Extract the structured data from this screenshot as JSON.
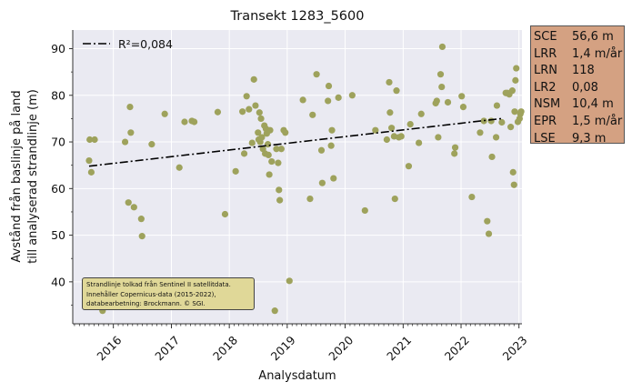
{
  "chart_data": {
    "type": "scatter",
    "title": "Transekt 1283_5600",
    "xlabel": "Analysdatum",
    "ylabel_lines": [
      "Avstånd från baslinje på land",
      "till analyserad strandlinje (m)"
    ],
    "xlim": [
      "2015-04-20",
      "2023-01-20"
    ],
    "ylim": [
      31,
      94
    ],
    "x_ticks": [
      "2016",
      "2017",
      "2018",
      "2019",
      "2020",
      "2021",
      "2022",
      "2023"
    ],
    "y_ticks": [
      40,
      50,
      60,
      70,
      80,
      90
    ],
    "grid": true,
    "legend": {
      "position": "top-left",
      "label": "R²=0,084"
    },
    "point_color": "#9ea25c",
    "trend": {
      "x": [
        "2015-08-01",
        "2022-09-10"
      ],
      "y": [
        64.8,
        75.0
      ]
    },
    "points": [
      {
        "x": "2015-08-01",
        "y": 66.0
      },
      {
        "x": "2015-08-05",
        "y": 70.5
      },
      {
        "x": "2015-08-15",
        "y": 63.5
      },
      {
        "x": "2015-09-05",
        "y": 70.5
      },
      {
        "x": "2015-10-25",
        "y": 33.8
      },
      {
        "x": "2016-03-15",
        "y": 70.0
      },
      {
        "x": "2016-04-05",
        "y": 57.0
      },
      {
        "x": "2016-04-15",
        "y": 77.5
      },
      {
        "x": "2016-04-20",
        "y": 72.0
      },
      {
        "x": "2016-05-10",
        "y": 56.0
      },
      {
        "x": "2016-06-25",
        "y": 53.5
      },
      {
        "x": "2016-06-30",
        "y": 49.8
      },
      {
        "x": "2016-08-30",
        "y": 69.5
      },
      {
        "x": "2016-11-20",
        "y": 76.0
      },
      {
        "x": "2017-02-20",
        "y": 64.5
      },
      {
        "x": "2017-03-25",
        "y": 74.3
      },
      {
        "x": "2017-05-10",
        "y": 74.5
      },
      {
        "x": "2017-05-25",
        "y": 74.3
      },
      {
        "x": "2017-10-20",
        "y": 76.4
      },
      {
        "x": "2017-12-05",
        "y": 54.5
      },
      {
        "x": "2018-02-10",
        "y": 63.7
      },
      {
        "x": "2018-03-25",
        "y": 76.5
      },
      {
        "x": "2018-04-05",
        "y": 67.5
      },
      {
        "x": "2018-04-20",
        "y": 79.8
      },
      {
        "x": "2018-05-05",
        "y": 77.0
      },
      {
        "x": "2018-05-25",
        "y": 69.8
      },
      {
        "x": "2018-06-05",
        "y": 83.4
      },
      {
        "x": "2018-06-15",
        "y": 77.8
      },
      {
        "x": "2018-07-01",
        "y": 72.0
      },
      {
        "x": "2018-07-05",
        "y": 70.5
      },
      {
        "x": "2018-07-10",
        "y": 76.3
      },
      {
        "x": "2018-07-15",
        "y": 70.0
      },
      {
        "x": "2018-07-20",
        "y": 75.0
      },
      {
        "x": "2018-07-25",
        "y": 71.0
      },
      {
        "x": "2018-08-01",
        "y": 68.5
      },
      {
        "x": "2018-08-10",
        "y": 73.5
      },
      {
        "x": "2018-08-15",
        "y": 67.5
      },
      {
        "x": "2018-08-20",
        "y": 72.8
      },
      {
        "x": "2018-08-25",
        "y": 71.8
      },
      {
        "x": "2018-09-01",
        "y": 69.5
      },
      {
        "x": "2018-09-05",
        "y": 67.2
      },
      {
        "x": "2018-09-10",
        "y": 63.0
      },
      {
        "x": "2018-09-15",
        "y": 72.5
      },
      {
        "x": "2018-09-25",
        "y": 65.8
      },
      {
        "x": "2018-10-15",
        "y": 33.8
      },
      {
        "x": "2018-10-25",
        "y": 68.5
      },
      {
        "x": "2018-11-05",
        "y": 65.5
      },
      {
        "x": "2018-11-10",
        "y": 59.7
      },
      {
        "x": "2018-11-15",
        "y": 57.5
      },
      {
        "x": "2018-11-25",
        "y": 68.5
      },
      {
        "x": "2018-12-10",
        "y": 72.5
      },
      {
        "x": "2018-12-20",
        "y": 72.0
      },
      {
        "x": "2019-01-15",
        "y": 40.2
      },
      {
        "x": "2019-04-10",
        "y": 79.0
      },
      {
        "x": "2019-05-25",
        "y": 57.8
      },
      {
        "x": "2019-06-10",
        "y": 75.8
      },
      {
        "x": "2019-07-05",
        "y": 84.5
      },
      {
        "x": "2019-08-05",
        "y": 68.2
      },
      {
        "x": "2019-08-10",
        "y": 61.2
      },
      {
        "x": "2019-09-15",
        "y": 78.8
      },
      {
        "x": "2019-09-20",
        "y": 82.0
      },
      {
        "x": "2019-10-05",
        "y": 69.2
      },
      {
        "x": "2019-10-10",
        "y": 72.5
      },
      {
        "x": "2019-10-20",
        "y": 62.2
      },
      {
        "x": "2019-11-20",
        "y": 79.5
      },
      {
        "x": "2020-02-15",
        "y": 80.0
      },
      {
        "x": "2020-05-05",
        "y": 55.3
      },
      {
        "x": "2020-07-10",
        "y": 72.5
      },
      {
        "x": "2020-09-20",
        "y": 70.5
      },
      {
        "x": "2020-10-05",
        "y": 82.8
      },
      {
        "x": "2020-10-10",
        "y": 76.3
      },
      {
        "x": "2020-10-20",
        "y": 73.0
      },
      {
        "x": "2020-11-05",
        "y": 71.2
      },
      {
        "x": "2020-11-10",
        "y": 57.8
      },
      {
        "x": "2020-11-20",
        "y": 81.0
      },
      {
        "x": "2020-12-05",
        "y": 71.0
      },
      {
        "x": "2020-12-20",
        "y": 71.2
      },
      {
        "x": "2021-02-05",
        "y": 64.8
      },
      {
        "x": "2021-02-15",
        "y": 73.8
      },
      {
        "x": "2021-04-10",
        "y": 69.8
      },
      {
        "x": "2021-04-25",
        "y": 76.0
      },
      {
        "x": "2021-07-25",
        "y": 78.3
      },
      {
        "x": "2021-08-01",
        "y": 78.8
      },
      {
        "x": "2021-08-10",
        "y": 71.0
      },
      {
        "x": "2021-08-25",
        "y": 84.5
      },
      {
        "x": "2021-09-01",
        "y": 81.8
      },
      {
        "x": "2021-09-05",
        "y": 90.4
      },
      {
        "x": "2021-10-10",
        "y": 78.5
      },
      {
        "x": "2021-11-20",
        "y": 67.5
      },
      {
        "x": "2021-11-25",
        "y": 68.8
      },
      {
        "x": "2022-01-05",
        "y": 79.8
      },
      {
        "x": "2022-01-15",
        "y": 77.5
      },
      {
        "x": "2022-03-10",
        "y": 58.2
      },
      {
        "x": "2022-05-01",
        "y": 72.0
      },
      {
        "x": "2022-05-25",
        "y": 74.5
      },
      {
        "x": "2022-06-15",
        "y": 53.0
      },
      {
        "x": "2022-06-25",
        "y": 50.3
      },
      {
        "x": "2022-07-10",
        "y": 74.5
      },
      {
        "x": "2022-07-15",
        "y": 66.8
      },
      {
        "x": "2022-08-10",
        "y": 71.0
      },
      {
        "x": "2022-08-15",
        "y": 77.8
      },
      {
        "x": "2022-09-15",
        "y": 74.2
      },
      {
        "x": "2022-10-10",
        "y": 80.5
      },
      {
        "x": "2022-10-20",
        "y": 80.5
      },
      {
        "x": "2022-11-01",
        "y": 80.2
      },
      {
        "x": "2022-11-10",
        "y": 73.2
      },
      {
        "x": "2022-11-20",
        "y": 81.0
      },
      {
        "x": "2022-11-25",
        "y": 63.5
      },
      {
        "x": "2022-12-01",
        "y": 60.8
      },
      {
        "x": "2022-12-05",
        "y": 76.5
      },
      {
        "x": "2022-12-10",
        "y": 83.2
      },
      {
        "x": "2022-12-15",
        "y": 85.8
      },
      {
        "x": "2022-12-25",
        "y": 74.3
      },
      {
        "x": "2023-01-05",
        "y": 75.0
      },
      {
        "x": "2023-01-10",
        "y": 76.0
      },
      {
        "x": "2023-01-15",
        "y": 76.5
      }
    ]
  },
  "stats": [
    {
      "key": "SCE",
      "value": "56,6 m"
    },
    {
      "key": "LRR",
      "value": "1,4 m/år"
    },
    {
      "key": "LRN",
      "value": "118"
    },
    {
      "key": "LR2",
      "value": "0,08"
    },
    {
      "key": "NSM",
      "value": "10,4 m"
    },
    {
      "key": "EPR",
      "value": "1,5 m/år"
    },
    {
      "key": "LSE",
      "value": "9,3 m"
    }
  ],
  "note": {
    "line1": "Strandlinje tolkad från Sentinel II satellitdata.",
    "line2": "Innehåller Copernicus-data (2015-2022),",
    "line3": "databearbetning: Brockmann. © SGI."
  }
}
